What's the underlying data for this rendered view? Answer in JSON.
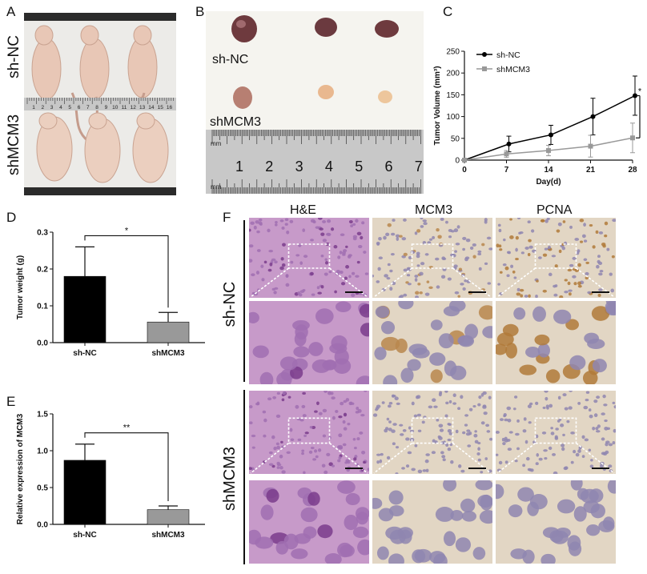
{
  "panels": {
    "A": {
      "letter": "A",
      "group_top": "sh-NC",
      "group_bottom": "shMCM3",
      "ruler_numbers": [
        "1",
        "2",
        "3",
        "4",
        "5",
        "6",
        "7",
        "8",
        "9",
        "10",
        "11",
        "12",
        "13",
        "14",
        "15",
        "16"
      ]
    },
    "B": {
      "letter": "B",
      "group_top": "sh-NC",
      "group_bottom": "shMCM3",
      "ruler_unit": "mm",
      "ruler_numbers": [
        "1",
        "2",
        "3",
        "4",
        "5",
        "6",
        "7"
      ]
    },
    "C": {
      "letter": "C"
    },
    "D": {
      "letter": "D"
    },
    "E": {
      "letter": "E"
    },
    "F": {
      "letter": "F",
      "columns": [
        "H&E",
        "MCM3",
        "PCNA"
      ],
      "rows": [
        "sh-NC",
        "shMCM3"
      ]
    }
  },
  "colors": {
    "shNC": "#000000",
    "shMCM3": "#999999",
    "he": "#c79ac9",
    "ihc": "#e2d6c4"
  },
  "chart_data": [
    {
      "panel": "C",
      "type": "line",
      "x": [
        0,
        7,
        14,
        21,
        28
      ],
      "xticks": [
        "0",
        "7",
        "14",
        "21",
        "28"
      ],
      "yticks": [
        "0",
        "50",
        "100",
        "150",
        "200",
        "250"
      ],
      "xlabel": "Day(d)",
      "ylabel": "Tumor Volume (mm³)",
      "ylim": [
        0,
        250
      ],
      "legend": "top-left",
      "significance": "*",
      "series": [
        {
          "name": "sh-NC",
          "values": [
            0,
            37,
            58,
            100,
            148
          ],
          "errors": [
            0,
            18,
            22,
            42,
            45
          ]
        },
        {
          "name": "shMCM3",
          "values": [
            0,
            14,
            22,
            32,
            51
          ],
          "errors": [
            0,
            8,
            12,
            25,
            34
          ]
        }
      ]
    },
    {
      "panel": "D",
      "type": "bar",
      "categories": [
        "sh-NC",
        "shMCM3"
      ],
      "values": [
        0.18,
        0.056
      ],
      "errors": [
        0.08,
        0.026
      ],
      "yticks": [
        "0.0",
        "0.1",
        "0.2",
        "0.3"
      ],
      "ylabel": "Tumor weight (g)",
      "ylim": [
        0,
        0.3
      ],
      "significance": "*"
    },
    {
      "panel": "E",
      "type": "bar",
      "categories": [
        "sh-NC",
        "shMCM3"
      ],
      "values": [
        0.87,
        0.2
      ],
      "errors": [
        0.22,
        0.05
      ],
      "yticks": [
        "0.0",
        "0.5",
        "1.0",
        "1.5"
      ],
      "ylabel": "Relative expression of MCM3",
      "ylim": [
        0,
        1.5
      ],
      "significance": "**"
    }
  ]
}
